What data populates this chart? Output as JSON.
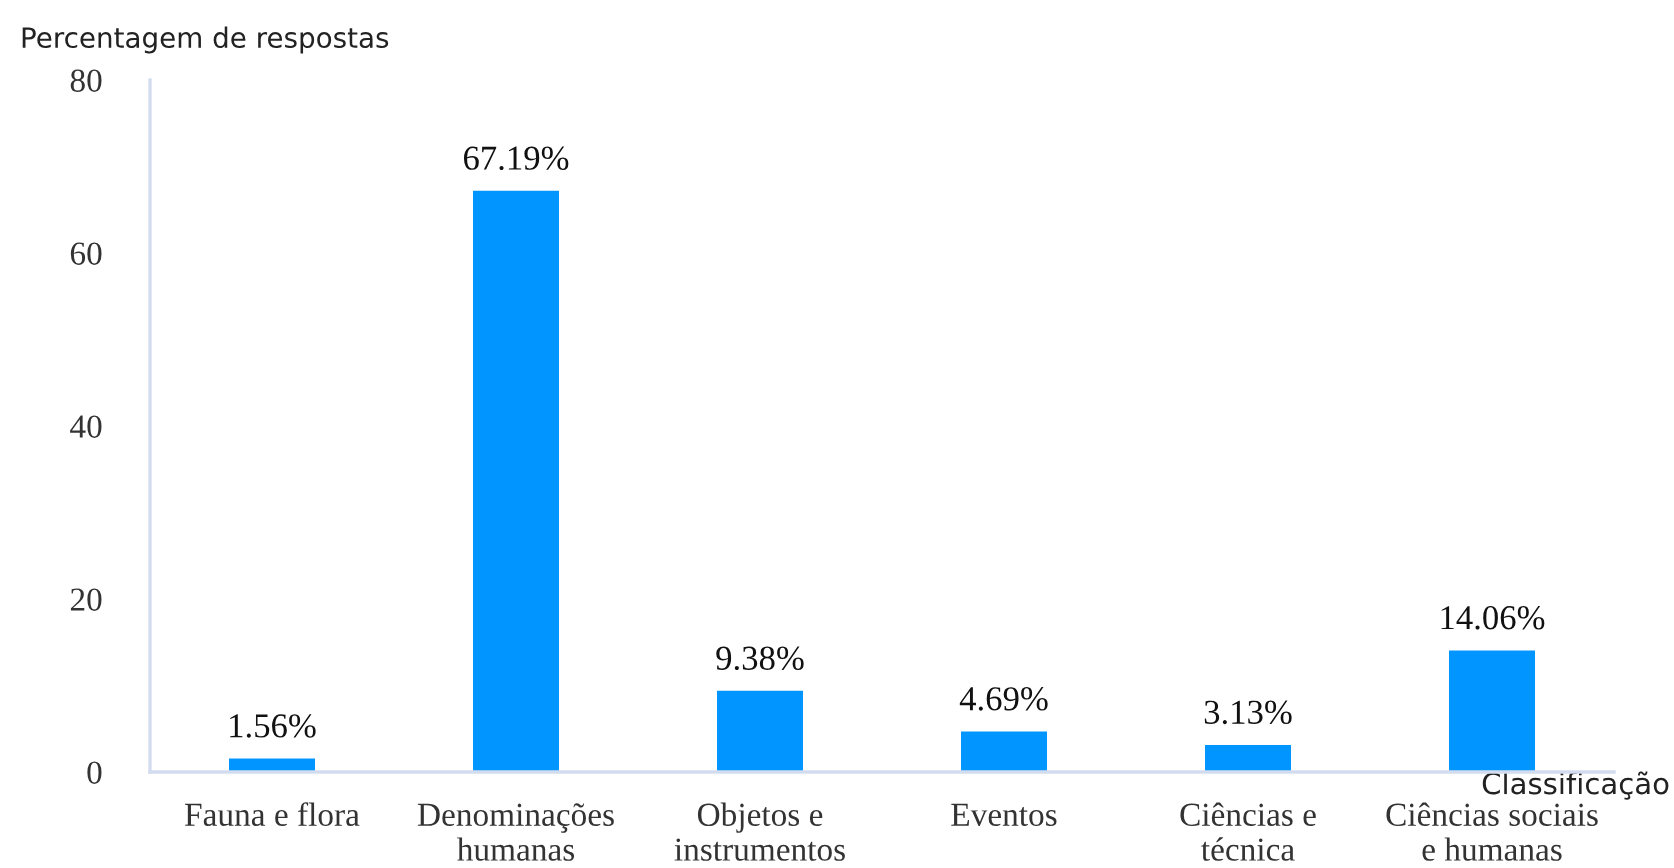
{
  "chart_data": {
    "type": "bar",
    "ylabel": "Percentagem de respostas",
    "xlabel": "Classificação",
    "categories": [
      "Fauna e flora",
      "Denominações\nhumanas",
      "Objetos e\ninstrumentos",
      "Eventos",
      "Ciências e\ntécnica",
      "Ciências sociais\ne humanas"
    ],
    "values": [
      1.56,
      67.19,
      9.38,
      4.69,
      3.13,
      14.06
    ],
    "value_labels": [
      "1.56%",
      "67.19%",
      "9.38%",
      "4.69%",
      "3.13%",
      "14.06%"
    ],
    "color": "#0095ff",
    "ylim": [
      0,
      80
    ],
    "yticks": [
      0,
      20,
      40,
      60,
      80
    ]
  }
}
